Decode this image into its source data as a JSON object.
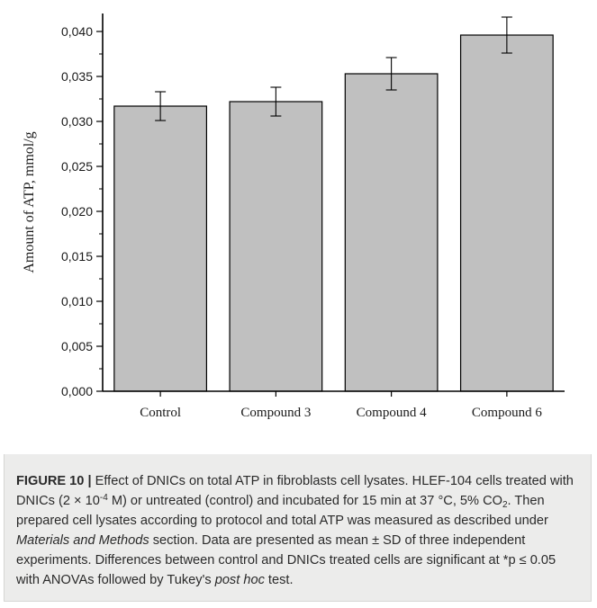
{
  "chart_data": {
    "type": "bar",
    "categories": [
      "Control",
      "Compound 3",
      "Compound 4",
      "Compound 6"
    ],
    "values": [
      0.0317,
      0.0322,
      0.0353,
      0.0396
    ],
    "errors": [
      0.0016,
      0.0016,
      0.0018,
      0.002
    ],
    "ylabel": "Amount of ATP, mmol/g",
    "ylim": [
      0,
      0.042
    ],
    "yticks": [
      "0,000",
      "0,005",
      "0,010",
      "0,015",
      "0,020",
      "0,025",
      "0,030",
      "0,035",
      "0,040"
    ],
    "ytick_values": [
      0,
      0.005,
      0.01,
      0.015,
      0.02,
      0.025,
      0.03,
      0.035,
      0.04
    ],
    "bar_color": "#c0c0c0",
    "grid": false
  },
  "caption": {
    "label": "FIGURE 10 |",
    "title": " Effect of DNICs on total ATP in fibroblasts cell lysates.",
    "s1": "HLEF-104 cells treated with DNICs (2 × 10",
    "s1_exp": "-4",
    "s1b": " M) or untreated (control) and incubated for 15 min at 37 °C, 5% CO",
    "s1_sub": "2",
    "s2": ". Then prepared cell lysates according to protocol and total ATP was measured as described under ",
    "s2_em": "Materials and Methods",
    "s3": " section. Data are presented as mean ± SD of three independent experiments. Differences between control and DNICs treated cells are significant at *p ≤ 0.05 with ANOVAs followed by Tukey's ",
    "s3_em": "post hoc",
    "s4": " test."
  }
}
